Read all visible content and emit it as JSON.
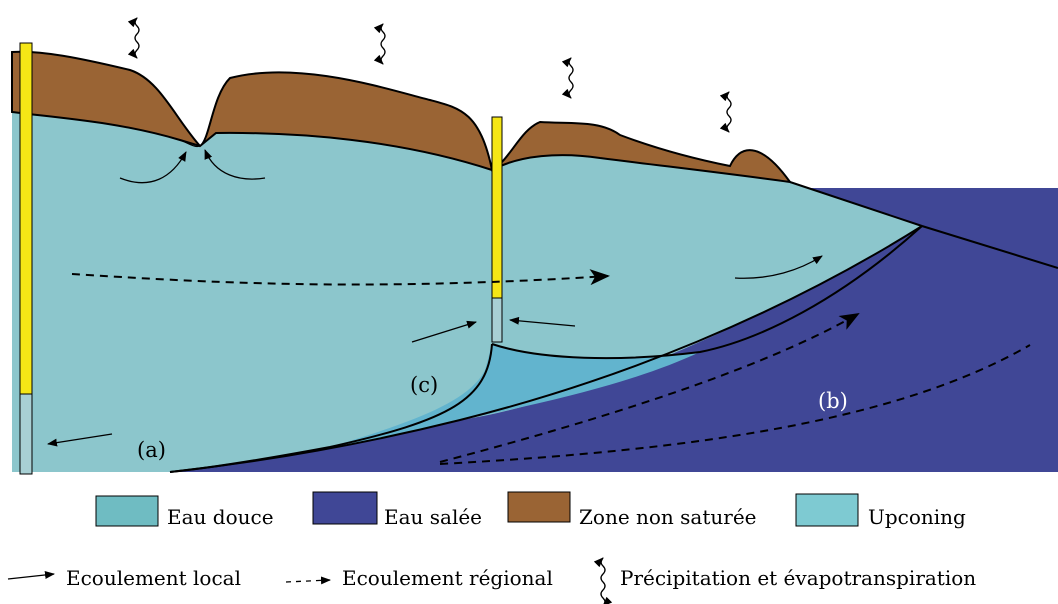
{
  "colors": {
    "fresh_water": "#8cc6cc",
    "salt_water": "#404796",
    "unsaturated_zone": "#9a6434",
    "upconing": "#62b4ce",
    "legend_fresh": "#6fbcc2",
    "legend_upconing": "#7ecad2",
    "well_casing": "#f5e616",
    "well_screen": "#a8d0d4",
    "outline": "#000000"
  },
  "labels": {
    "a": "(a)",
    "b": "(b)",
    "c": "(c)"
  },
  "legend": {
    "fresh_water": "Eau douce",
    "salt_water": "Eau salée",
    "unsaturated_zone": "Zone non saturée",
    "upconing": "Upconing",
    "local_flow": "Ecoulement local",
    "regional_flow": "Ecoulement régional",
    "precipitation": "Précipitation et évapotranspiration"
  },
  "icons": {
    "local_flow": "solid-arrow-icon",
    "regional_flow": "dashed-arrow-icon",
    "precipitation": "double-wavy-arrow-icon"
  }
}
